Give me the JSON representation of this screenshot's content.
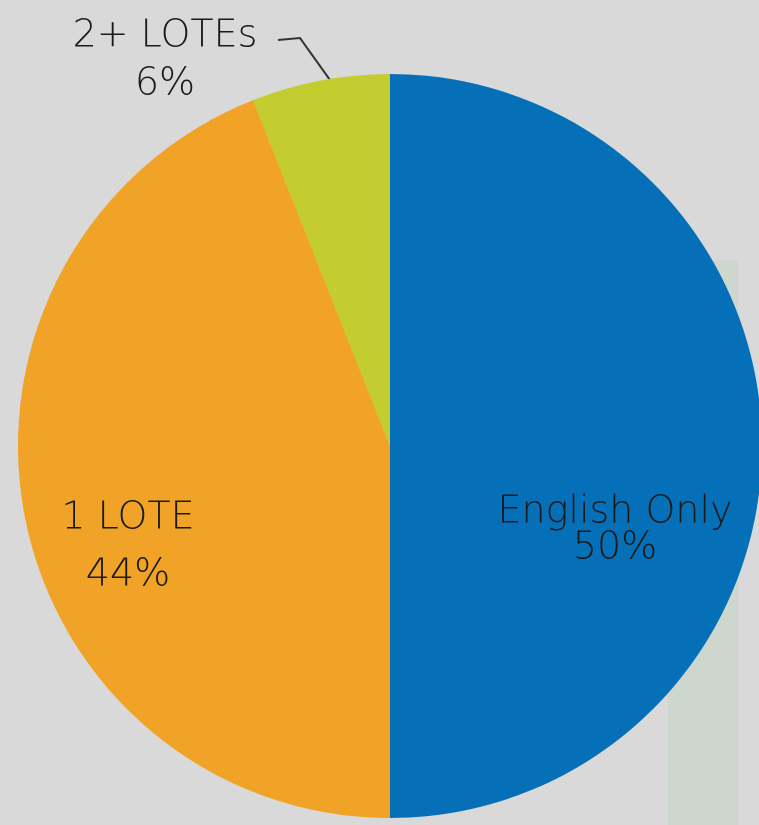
{
  "chart_data": {
    "type": "pie",
    "categories": [
      "English Only",
      "1 LOTE",
      "2+ LOTEs"
    ],
    "values": [
      50,
      44,
      6
    ],
    "value_labels": [
      "50%",
      "44%",
      "6%"
    ],
    "colors": [
      "#0570b8",
      "#f0a326",
      "#c4cd30"
    ]
  }
}
